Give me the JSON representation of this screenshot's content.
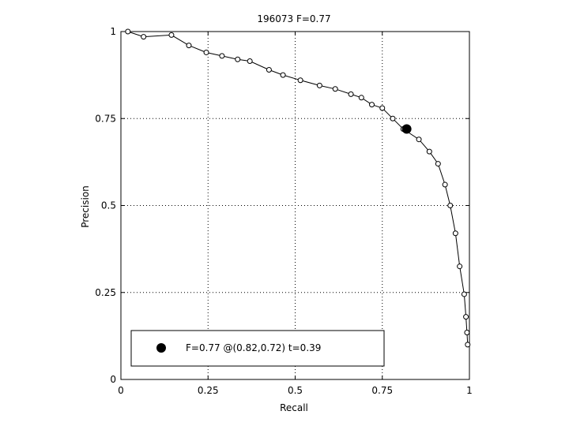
{
  "chart_data": {
    "type": "line",
    "title": "196073 F=0.77",
    "xlabel": "Recall",
    "ylabel": "Precision",
    "xlim": [
      0,
      1
    ],
    "ylim": [
      0,
      1
    ],
    "xticks": [
      "0",
      "0.25",
      "0.5",
      "0.75",
      "1"
    ],
    "yticks": [
      "0",
      "0.25",
      "0.5",
      "0.75",
      "1"
    ],
    "grid": true,
    "grid_style": "dotted",
    "legend_position": "bottom-left",
    "series": [
      {
        "marker": "open-circle",
        "color": "#000000",
        "x": [
          0.02,
          0.065,
          0.145,
          0.195,
          0.245,
          0.29,
          0.335,
          0.37,
          0.425,
          0.465,
          0.515,
          0.57,
          0.615,
          0.66,
          0.69,
          0.72,
          0.75,
          0.78,
          0.81,
          0.855,
          0.885,
          0.91,
          0.93,
          0.945,
          0.96,
          0.972,
          0.985,
          0.99,
          0.993,
          0.995
        ],
        "y": [
          1.0,
          0.985,
          0.99,
          0.96,
          0.94,
          0.93,
          0.92,
          0.915,
          0.89,
          0.875,
          0.86,
          0.845,
          0.835,
          0.82,
          0.81,
          0.79,
          0.78,
          0.75,
          0.72,
          0.69,
          0.655,
          0.62,
          0.56,
          0.5,
          0.42,
          0.325,
          0.245,
          0.18,
          0.135,
          0.1
        ]
      }
    ],
    "best_point": {
      "x": 0.82,
      "y": 0.72,
      "marker": "filled-circle"
    },
    "legend_text": "F=0.77 @(0.82,0.72) t=0.39"
  }
}
